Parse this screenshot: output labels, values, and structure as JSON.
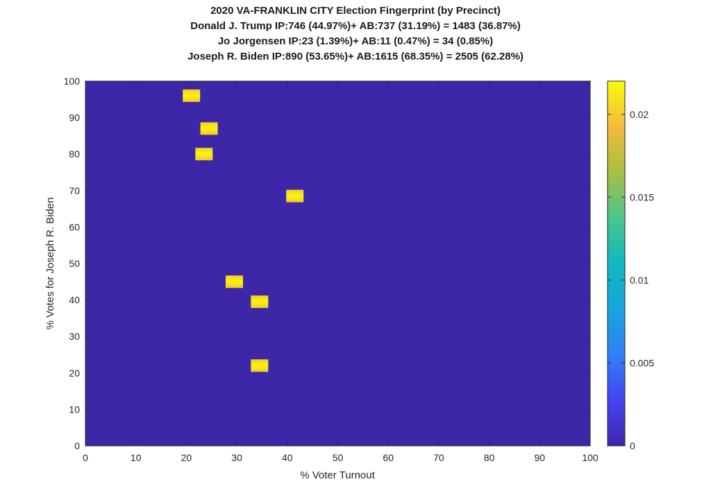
{
  "chart_data": {
    "type": "heatmap",
    "title": [
      "2020 VA-FRANKLIN CITY Election Fingerprint (by Precinct)",
      "Donald J. Trump IP:746 (44.97%)+ AB:737 (31.19%) = 1483 (36.87%)",
      "Jo Jorgensen IP:23 (1.39%)+ AB:11 (0.47%) = 34 (0.85%)",
      "Joseph R. Biden IP:890 (53.65%)+ AB:1615 (68.35%) = 2505 (62.28%)"
    ],
    "xlabel": "% Voter Turnout",
    "ylabel": "% Votes for Joseph R. Biden",
    "xlim": [
      0,
      100
    ],
    "ylim": [
      0,
      100
    ],
    "xticks": [
      "0",
      "10",
      "20",
      "30",
      "40",
      "50",
      "60",
      "70",
      "80",
      "90",
      "100"
    ],
    "yticks": [
      "0",
      "10",
      "20",
      "30",
      "40",
      "50",
      "60",
      "70",
      "80",
      "90",
      "100"
    ],
    "grid": false,
    "background_value": 0,
    "points": [
      {
        "x": 21,
        "y": 96,
        "value": 0.022
      },
      {
        "x": 24.5,
        "y": 87,
        "value": 0.022
      },
      {
        "x": 23.5,
        "y": 80,
        "value": 0.022
      },
      {
        "x": 41.5,
        "y": 68.5,
        "value": 0.022
      },
      {
        "x": 29.5,
        "y": 45,
        "value": 0.022
      },
      {
        "x": 34.5,
        "y": 39.5,
        "value": 0.022
      },
      {
        "x": 34.5,
        "y": 22,
        "value": 0.022
      }
    ],
    "colorbar": {
      "min": 0,
      "max": 0.022,
      "ticks": [
        0,
        0.005,
        0.01,
        0.015,
        0.02
      ],
      "tick_labels": [
        "0",
        "0.005",
        "0.01",
        "0.015",
        "0.02"
      ],
      "colormap": "parula",
      "low_color": "#3e26a8",
      "high_color": "#f9fb0e"
    }
  }
}
